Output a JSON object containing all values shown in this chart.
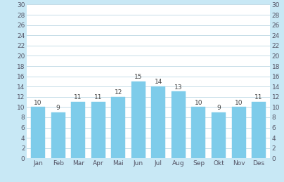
{
  "categories": [
    "Jan",
    "Feb",
    "Mar",
    "Apr",
    "Mai",
    "Jun",
    "Jul",
    "Aug",
    "Sep",
    "Okt",
    "Nov",
    "Des"
  ],
  "values": [
    10,
    9,
    11,
    11,
    12,
    15,
    14,
    13,
    10,
    9,
    10,
    11
  ],
  "bar_color": "#7eccea",
  "bar_edge_color": "#7eccea",
  "background_color": "#ffffff",
  "outer_background": "#c8e8f5",
  "ylim": [
    0,
    30
  ],
  "yticks": [
    0,
    2,
    4,
    6,
    8,
    10,
    12,
    14,
    16,
    18,
    20,
    22,
    24,
    26,
    28,
    30
  ],
  "grid_color": "#c5dce8",
  "label_fontsize": 6.5,
  "value_fontsize": 6.5,
  "value_color": "#444444",
  "tick_color": "#555566",
  "axis_label_color": "#555566"
}
